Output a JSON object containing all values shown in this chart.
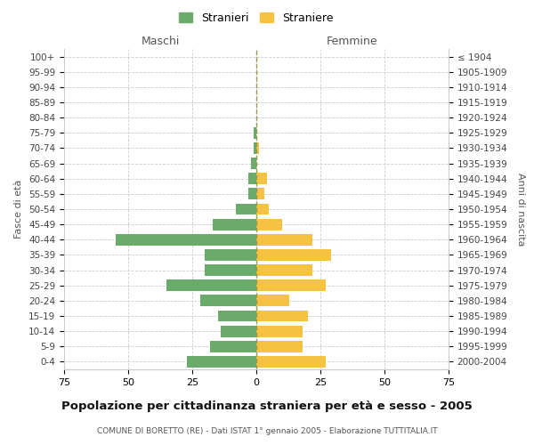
{
  "age_groups_bottom_to_top": [
    "0-4",
    "5-9",
    "10-14",
    "15-19",
    "20-24",
    "25-29",
    "30-34",
    "35-39",
    "40-44",
    "45-49",
    "50-54",
    "55-59",
    "60-64",
    "65-69",
    "70-74",
    "75-79",
    "80-84",
    "85-89",
    "90-94",
    "95-99",
    "100+"
  ],
  "birth_years_bottom_to_top": [
    "2000-2004",
    "1995-1999",
    "1990-1994",
    "1985-1989",
    "1980-1984",
    "1975-1979",
    "1970-1974",
    "1965-1969",
    "1960-1964",
    "1955-1959",
    "1950-1954",
    "1945-1949",
    "1940-1944",
    "1935-1939",
    "1930-1934",
    "1925-1929",
    "1920-1924",
    "1915-1919",
    "1910-1914",
    "1905-1909",
    "≤ 1904"
  ],
  "males_bottom_to_top": [
    27,
    18,
    14,
    15,
    22,
    35,
    20,
    20,
    55,
    17,
    8,
    3,
    3,
    2,
    1,
    1,
    0,
    0,
    0,
    0,
    0
  ],
  "females_bottom_to_top": [
    27,
    18,
    18,
    20,
    13,
    27,
    22,
    29,
    22,
    10,
    5,
    3,
    4,
    0,
    1,
    0,
    0,
    0,
    0,
    0,
    0
  ],
  "male_color": "#6aaa6a",
  "female_color": "#f5c242",
  "grid_color": "#cccccc",
  "dashed_line_color": "#999944",
  "title": "Popolazione per cittadinanza straniera per età e sesso - 2005",
  "subtitle": "COMUNE DI BORETTO (RE) - Dati ISTAT 1° gennaio 2005 - Elaborazione TUTTITALIA.IT",
  "left_label": "Maschi",
  "right_label": "Femmine",
  "ylabel": "Fasce di età",
  "right_ylabel": "Anni di nascita",
  "legend_male": "Stranieri",
  "legend_female": "Straniere",
  "xlim": 75,
  "bar_height": 0.75
}
